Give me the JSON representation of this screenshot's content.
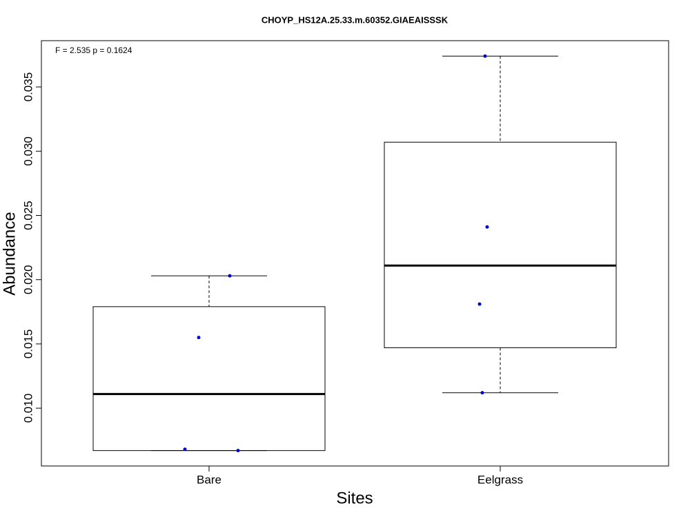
{
  "chart_data": {
    "type": "boxplot",
    "title": "CHOYP_HS12A.25.33.m.60352.GIAEAISSSK",
    "annotation": "F = 2.535 p = 0.1624",
    "x_label": "Sites",
    "y_label": "Abundance",
    "categories": [
      "Bare",
      "Eelgrass"
    ],
    "boxes": [
      {
        "min": 0.0067,
        "q1": 0.0067,
        "median": 0.0111,
        "q3": 0.0179,
        "max": 0.0203
      },
      {
        "min": 0.0112,
        "q1": 0.0147,
        "median": 0.0211,
        "q3": 0.0307,
        "max": 0.0374
      }
    ],
    "points": [
      [
        0.0203,
        0.0155,
        0.0068,
        0.0067
      ],
      [
        0.0374,
        0.0241,
        0.0181,
        0.0112
      ]
    ],
    "point_color": "#0000cc",
    "ylim": [
      0.0055,
      0.0386
    ],
    "yticks": [
      {
        "value": 0.01,
        "label": "0.010"
      },
      {
        "value": 0.015,
        "label": "0.015"
      },
      {
        "value": 0.02,
        "label": "0.020"
      },
      {
        "value": 0.025,
        "label": "0.025"
      },
      {
        "value": 0.03,
        "label": "0.030"
      },
      {
        "value": 0.035,
        "label": "0.035"
      }
    ]
  }
}
